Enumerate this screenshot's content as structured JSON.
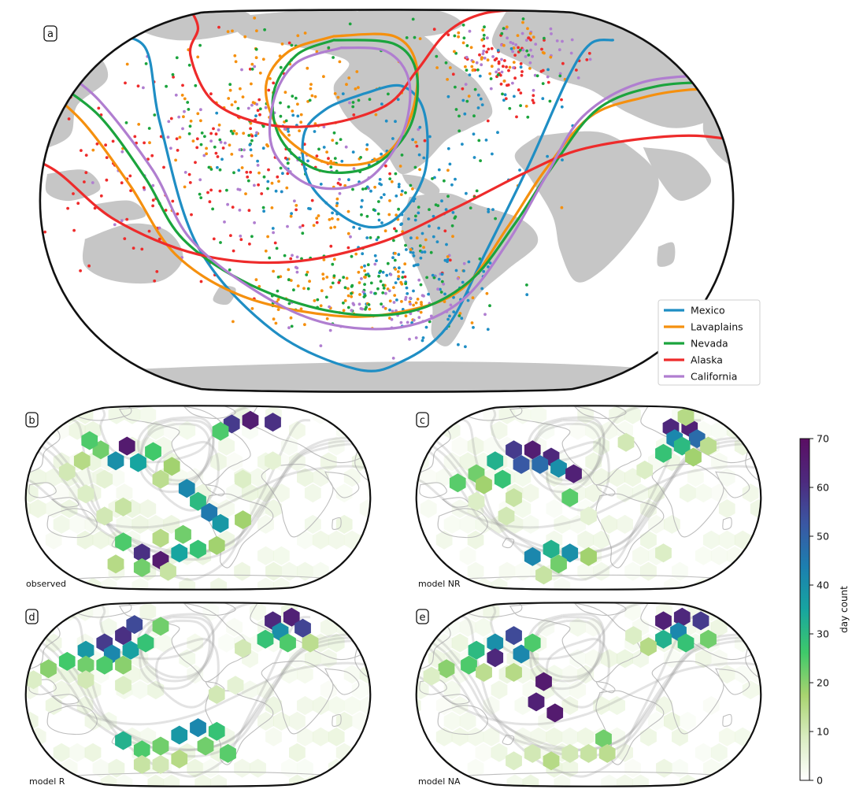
{
  "panels": {
    "a": {
      "letter": "a"
    },
    "b": {
      "letter": "b",
      "caption": "observed"
    },
    "c": {
      "letter": "c",
      "caption": "model NR"
    },
    "d": {
      "letter": "d",
      "caption": "model R"
    },
    "e": {
      "letter": "e",
      "caption": "model NA"
    }
  },
  "legend": [
    {
      "name": "Mexico",
      "color": "#1f8ec4"
    },
    {
      "name": "Lavaplains",
      "color": "#f5900e"
    },
    {
      "name": "Nevada",
      "color": "#1ba43d"
    },
    {
      "name": "Alaska",
      "color": "#ee2b2b"
    },
    {
      "name": "California",
      "color": "#b07ed0"
    }
  ],
  "colorbar": {
    "label": "day count",
    "ticks": [
      "0",
      "10",
      "20",
      "30",
      "40",
      "50",
      "60",
      "70"
    ],
    "min": 0,
    "max": 70,
    "colors": [
      "#ffffff",
      "#d9ecc1",
      "#a8d36f",
      "#3ec96a",
      "#17a5a0",
      "#1c7fb0",
      "#3a57a3",
      "#4d2a7e",
      "#5a0e63"
    ]
  },
  "colors": {
    "land": "#c6c6c6",
    "coast": "#bdbdbd",
    "outline": "#111111"
  }
}
